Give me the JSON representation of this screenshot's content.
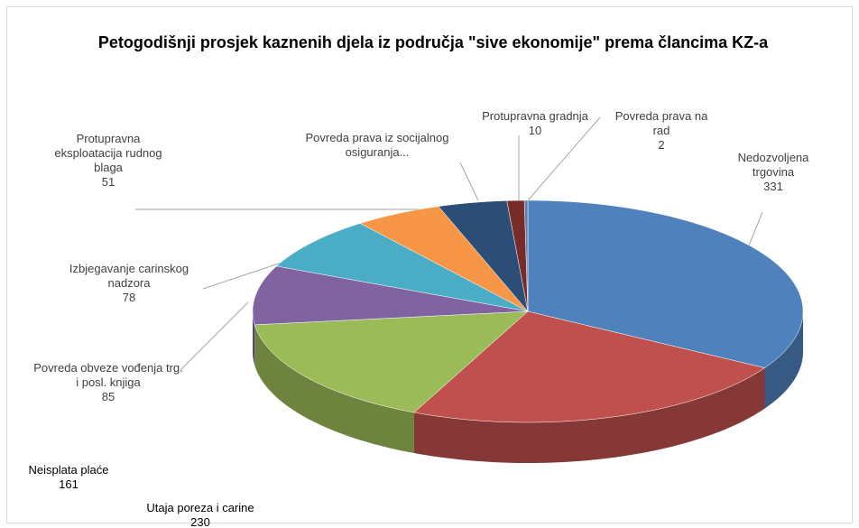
{
  "chart_data": {
    "type": "pie3d",
    "title": "Petogodišnji prosjek  kaznenih djela iz područja \"sive ekonomije\" prema člancima KZ-a",
    "categories": [
      "Nedozvoljena trgovina",
      "Utaja poreza  i carine",
      "Neisplata plaće",
      "Povreda obveze vođenja trg. i posl. knjiga",
      "Izbjegavanje carinskog nadzora",
      "Protupravna eksploatacija rudnog blaga",
      "Povreda prava iz socijalnog osiguranja...",
      "Protupravna gradnja",
      "Povreda prava na rad"
    ],
    "values": [
      331,
      230,
      161,
      85,
      78,
      51,
      40,
      10,
      2
    ],
    "colors": [
      "#4f81bd",
      "#c0504d",
      "#9bbb59",
      "#8064a2",
      "#4bacc6",
      "#f79646",
      "#2c4d75",
      "#772c2a",
      "#5f7fae"
    ],
    "value_labels_shown": [
      true,
      true,
      true,
      true,
      true,
      true,
      false,
      true,
      true
    ]
  }
}
